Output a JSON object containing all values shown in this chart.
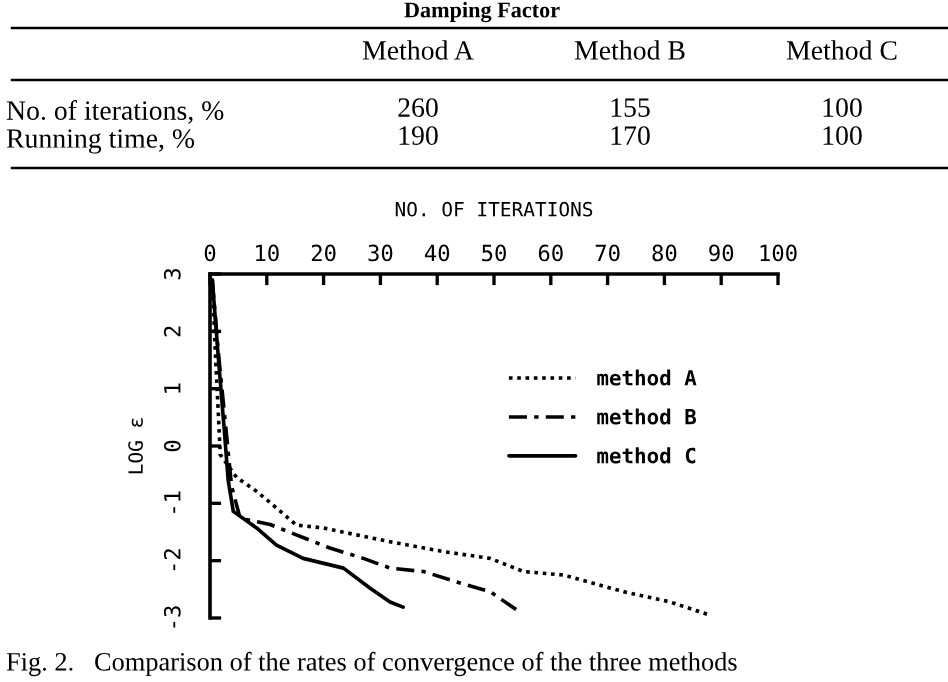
{
  "chart_data": [
    {
      "type": "heatmap",
      "title": "Damping Factor",
      "categories": [
        "Method A",
        "Method B",
        "Method C"
      ],
      "y_categories": [
        "No. of iterations, %",
        "Running time, %"
      ],
      "cells": [
        [
          260,
          155,
          100
        ],
        [
          190,
          170,
          100
        ]
      ],
      "data_labels": true
    },
    {
      "type": "line",
      "xlabel": "NO. OF ITERATIONS",
      "ylabel": "LOG ε",
      "xlim": [
        0,
        100
      ],
      "xticks": [
        0,
        10,
        20,
        30,
        40,
        50,
        60,
        70,
        80,
        90,
        100
      ],
      "ylim": [
        -3,
        3
      ],
      "yticks": [
        -3,
        -2,
        -1,
        0,
        1,
        2,
        3
      ],
      "legend": "right",
      "series": [
        {
          "name": "method A",
          "color": "#000000",
          "line_style": "dotted",
          "x": [
            0.4,
            1.0,
            1.5,
            1.8,
            4.7,
            8.2,
            11.7,
            15.2,
            20,
            25.8,
            31.7,
            41,
            49.3,
            55.2,
            62.2,
            72.8,
            81,
            88
          ],
          "values": [
            2.9,
            1.5,
            0.5,
            -0.15,
            -0.55,
            -0.79,
            -1.08,
            -1.38,
            -1.43,
            -1.55,
            -1.67,
            -1.84,
            -1.96,
            -2.19,
            -2.25,
            -2.54,
            -2.72,
            -2.95
          ]
        },
        {
          "name": "method B",
          "color": "#000000",
          "line_style": "dashdot",
          "x": [
            0.4,
            1.5,
            2.8,
            3.8,
            5.3,
            10.6,
            15.2,
            21.1,
            27,
            31.7,
            37.6,
            43.4,
            49.3,
            54
          ],
          "values": [
            2.9,
            1.6,
            0.3,
            -0.7,
            -1.26,
            -1.37,
            -1.55,
            -1.78,
            -1.96,
            -2.13,
            -2.19,
            -2.37,
            -2.54,
            -2.86
          ]
        },
        {
          "name": "method C",
          "color": "#000000",
          "line_style": "solid",
          "x": [
            0.4,
            1.5,
            2.5,
            3.2,
            4.1,
            8.2,
            11.7,
            16.4,
            23.5,
            28.2,
            31.7,
            34
          ],
          "values": [
            2.9,
            1.5,
            0.3,
            -0.6,
            -1.14,
            -1.43,
            -1.73,
            -1.96,
            -2.13,
            -2.48,
            -2.72,
            -2.81
          ]
        }
      ],
      "annotations": [
        "Fig. 2.   Comparison of the rates of convergence of the three methods"
      ]
    }
  ]
}
